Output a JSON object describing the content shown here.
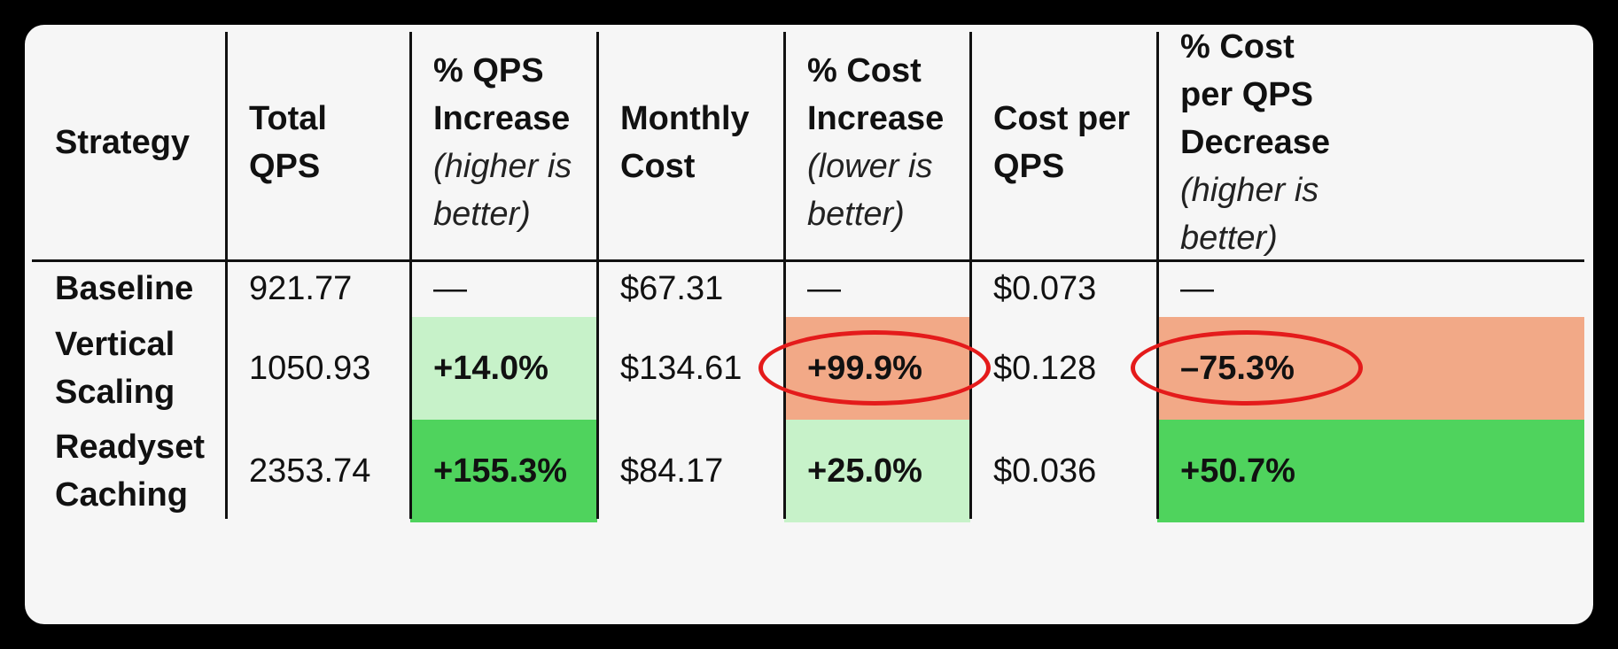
{
  "chart_data": {
    "type": "table",
    "columns": [
      {
        "lines": [
          "Strategy"
        ],
        "note": []
      },
      {
        "lines": [
          "Total",
          "QPS"
        ],
        "note": []
      },
      {
        "lines": [
          "% QPS",
          "Increase"
        ],
        "note": [
          "(higher is",
          "better)"
        ]
      },
      {
        "lines": [
          "Monthly",
          "Cost"
        ],
        "note": []
      },
      {
        "lines": [
          "% Cost",
          "Increase"
        ],
        "note": [
          "(lower is",
          "better)"
        ]
      },
      {
        "lines": [
          "Cost per",
          "QPS"
        ],
        "note": []
      },
      {
        "lines": [
          "% Cost",
          "per QPS",
          "Decrease"
        ],
        "note": [
          "(higher is",
          "better)"
        ]
      }
    ],
    "rows": [
      {
        "label": [
          "Baseline"
        ],
        "cells": [
          "921.77",
          "—",
          "$67.31",
          "—",
          "$0.073",
          "—"
        ]
      },
      {
        "label": [
          "Vertical",
          "Scaling"
        ],
        "cells": [
          "1050.93",
          "+14.0%",
          "$134.61",
          "+99.9%",
          "$0.128",
          "–75.3%"
        ]
      },
      {
        "label": [
          "Readyset",
          "Caching"
        ],
        "cells": [
          "2353.74",
          "+155.3%",
          "$84.17",
          "+25.0%",
          "$0.036",
          "+50.7%"
        ]
      }
    ],
    "highlights": {
      "light_green": "#c7f2c9",
      "green": "#4fd35d",
      "salmon": "#f2a987",
      "circle": "#e41b1b"
    }
  }
}
